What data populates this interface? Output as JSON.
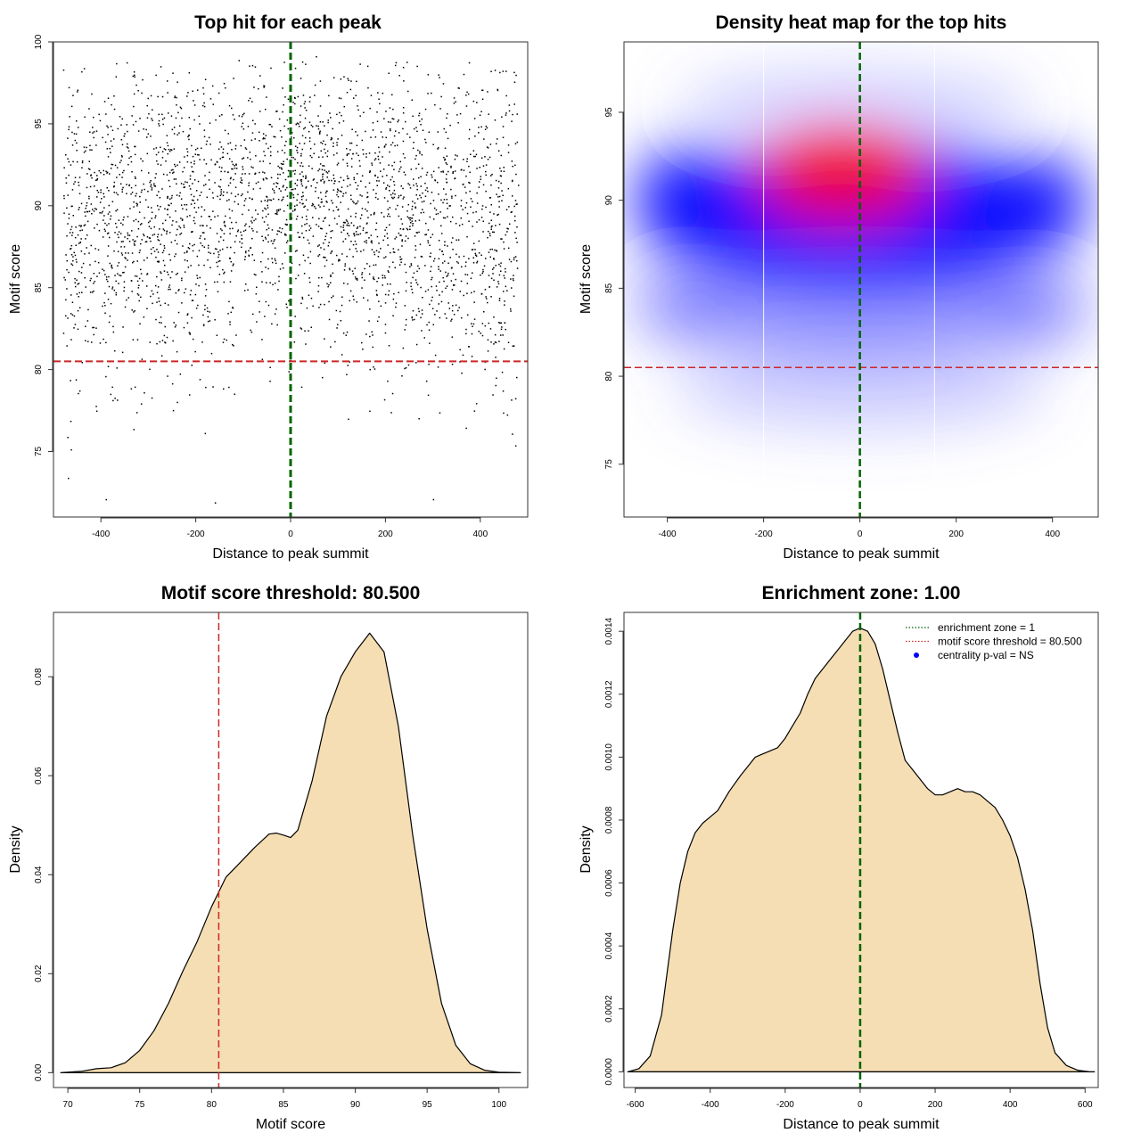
{
  "chart_data": [
    {
      "type": "scatter",
      "title": "Top hit for each peak",
      "xlabel": "Distance to peak summit",
      "ylabel": "Motif score",
      "xlim": [
        -500,
        500
      ],
      "ylim": [
        71,
        100
      ],
      "xticks": [
        -400,
        -200,
        0,
        200,
        400
      ],
      "yticks": [
        75,
        80,
        85,
        90,
        95,
        100
      ],
      "n_points": 3000,
      "points_description": "one point per peak; x roughly uniform on [-480, 480]; score mostly 78-96, densest near x=0, score ~91",
      "vline": {
        "x": 0,
        "color": "#006400",
        "style": "dashed"
      },
      "hline": {
        "y": 80.5,
        "color": "#cd2626",
        "style": "dashed"
      },
      "outliers": [
        [
          -470,
          73.4
        ],
        [
          -390,
          72.1
        ],
        [
          -160,
          71.9
        ],
        [
          300,
          72.1
        ],
        [
          -110,
          98.9
        ],
        [
          220,
          98.6
        ],
        [
          430,
          98.3
        ],
        [
          -330,
          97.9
        ]
      ]
    },
    {
      "type": "heatmap",
      "title": "Density heat map for the top hits",
      "xlabel": "Distance to peak summit",
      "ylabel": "Motif score",
      "xlim": [
        -490,
        495
      ],
      "ylim": [
        72,
        99
      ],
      "xticks": [
        -400,
        -200,
        0,
        200,
        400
      ],
      "yticks": [
        75,
        80,
        85,
        90,
        95
      ],
      "colors": [
        "#ffffff",
        "#0000ff",
        "#ff0000"
      ],
      "density_peak": {
        "x": -20,
        "y": 91.4
      },
      "vline": {
        "x": 0,
        "color": "#006400",
        "style": "dashed"
      },
      "hline": {
        "y": 80.5,
        "color": "#cd2626",
        "style": "dashed"
      },
      "white_vlines": [
        -200,
        155
      ]
    },
    {
      "type": "area",
      "title": "Motif score threshold: 80.500",
      "xlabel": "Motif score",
      "ylabel": "Density",
      "xlim": [
        69,
        102
      ],
      "ylim": [
        -0.003,
        0.093
      ],
      "xticks": [
        70,
        75,
        80,
        85,
        90,
        95,
        100
      ],
      "yticks": [
        0.0,
        0.02,
        0.04,
        0.06,
        0.08
      ],
      "ytick_labels": [
        "0.00",
        "0.02",
        "0.04",
        "0.06",
        "0.08"
      ],
      "fill": "#f5deb3",
      "x": [
        69.5,
        71,
        72,
        73,
        74,
        75,
        76,
        77,
        78,
        79,
        80,
        81,
        82,
        83,
        84,
        84.5,
        85,
        85.5,
        86,
        87,
        88,
        89,
        90,
        91,
        92,
        93,
        94,
        95,
        96,
        97,
        98,
        99,
        100,
        101.5
      ],
      "y": [
        0.0,
        0.0003,
        0.0008,
        0.001,
        0.002,
        0.0045,
        0.0085,
        0.014,
        0.0205,
        0.0265,
        0.0335,
        0.0395,
        0.0425,
        0.0455,
        0.0482,
        0.0484,
        0.048,
        0.0475,
        0.049,
        0.059,
        0.072,
        0.08,
        0.085,
        0.0888,
        0.085,
        0.07,
        0.048,
        0.029,
        0.014,
        0.0055,
        0.0018,
        0.0005,
        0.0001,
        0.0
      ],
      "vline": {
        "x": 80.5,
        "color": "#cd2626",
        "style": "dashed"
      }
    },
    {
      "type": "area",
      "title": "Enrichment zone: 1.00",
      "xlabel": "Distance to peak summit",
      "ylabel": "Density",
      "xlim": [
        -630,
        635
      ],
      "ylim": [
        -5e-05,
        0.00146
      ],
      "xticks": [
        -600,
        -400,
        -200,
        0,
        200,
        400,
        600
      ],
      "yticks": [
        0.0,
        0.0002,
        0.0004,
        0.0006,
        0.0008,
        0.001,
        0.0012,
        0.0014
      ],
      "ytick_labels": [
        "0.0000",
        "0.0002",
        "0.0004",
        "0.0006",
        "0.0008",
        "0.0010",
        "0.0012",
        "0.0014"
      ],
      "fill": "#f5deb3",
      "x": [
        -620,
        -590,
        -560,
        -530,
        -500,
        -480,
        -460,
        -440,
        -420,
        -400,
        -380,
        -350,
        -320,
        -300,
        -280,
        -260,
        -240,
        -220,
        -200,
        -180,
        -160,
        -140,
        -120,
        -100,
        -80,
        -60,
        -40,
        -20,
        0,
        20,
        40,
        60,
        80,
        100,
        120,
        140,
        160,
        180,
        200,
        220,
        240,
        260,
        280,
        300,
        320,
        340,
        360,
        380,
        400,
        420,
        440,
        460,
        480,
        500,
        520,
        550,
        580,
        610,
        625
      ],
      "y": [
        0.0,
        1e-05,
        5e-05,
        0.00018,
        0.00045,
        0.0006,
        0.0007,
        0.00076,
        0.00079,
        0.00081,
        0.00083,
        0.00089,
        0.00094,
        0.00097,
        0.001,
        0.00101,
        0.00102,
        0.00103,
        0.00106,
        0.0011,
        0.00114,
        0.0012,
        0.00125,
        0.00128,
        0.00131,
        0.00134,
        0.00137,
        0.0014,
        0.00141,
        0.0014,
        0.00136,
        0.00128,
        0.00118,
        0.00108,
        0.00099,
        0.00096,
        0.00093,
        0.0009,
        0.00088,
        0.00088,
        0.00089,
        0.0009,
        0.00089,
        0.00089,
        0.00088,
        0.00086,
        0.00084,
        0.0008,
        0.00075,
        0.00068,
        0.00058,
        0.00045,
        0.00028,
        0.00014,
        6e-05,
        2e-05,
        5e-06,
        5e-07,
        0.0
      ],
      "vline": {
        "x": 0,
        "color": "#006400",
        "style": "dashed"
      },
      "legend": [
        {
          "label": "enrichment zone = 1",
          "color": "#006400",
          "symbol": "dotted-line"
        },
        {
          "label": "motif score threshold = 80.500",
          "color": "#cd2626",
          "symbol": "dotted-line"
        },
        {
          "label": "centrality p-val = NS",
          "color": "#0000ff",
          "symbol": "dot"
        }
      ]
    }
  ]
}
